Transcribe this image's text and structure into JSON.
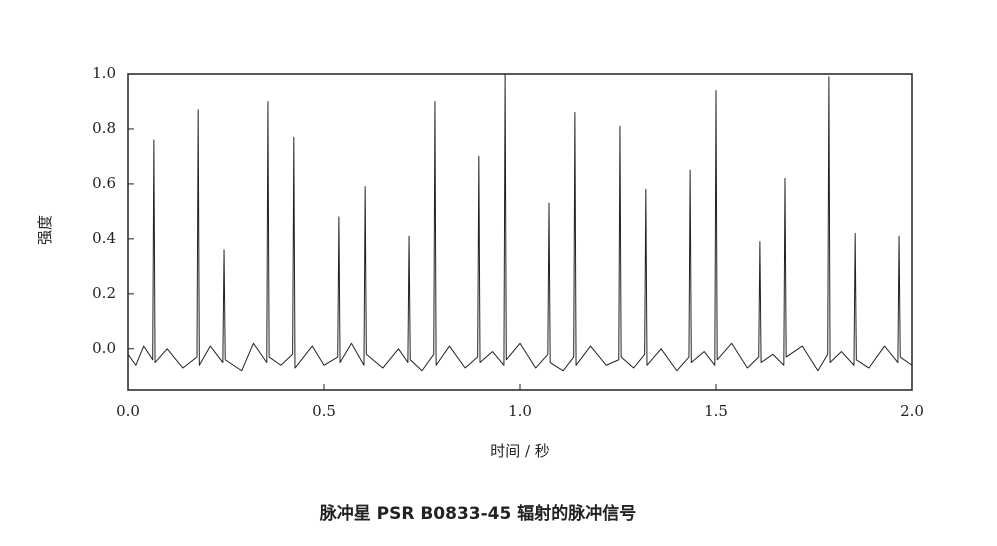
{
  "chart_data": {
    "type": "line",
    "title": "脉冲星 PSR B0833-45 辐射的脉冲信号",
    "xlabel": "时间 / 秒",
    "ylabel": "强度",
    "color": "#222222",
    "xlim": [
      0,
      2
    ],
    "ylim": [
      -0.15,
      1
    ],
    "xticks": [
      {
        "value": 0,
        "label": "0.0"
      },
      0.5,
      {
        "value": 1,
        "label": "1.0"
      },
      1.5,
      {
        "value": 2,
        "label": "2.0"
      }
    ],
    "yticks": [
      {
        "value": 0,
        "label": "0.0"
      },
      0.2,
      0.4,
      0.6,
      0.8,
      {
        "value": 1,
        "label": "1.0"
      }
    ],
    "x": [
      0,
      0.02,
      0.04,
      0.063,
      0.066,
      0.069,
      0.1,
      0.14,
      0.176,
      0.179,
      0.182,
      0.21,
      0.242,
      0.245,
      0.248,
      0.29,
      0.32,
      0.354,
      0.357,
      0.36,
      0.39,
      0.42,
      0.423,
      0.426,
      0.47,
      0.5,
      0.535,
      0.538,
      0.541,
      0.57,
      0.602,
      0.605,
      0.608,
      0.65,
      0.69,
      0.714,
      0.717,
      0.72,
      0.75,
      0.78,
      0.783,
      0.786,
      0.82,
      0.86,
      0.892,
      0.895,
      0.898,
      0.93,
      0.959,
      0.962,
      0.965,
      1.0,
      1.04,
      1.071,
      1.074,
      1.077,
      1.11,
      1.137,
      1.14,
      1.143,
      1.18,
      1.22,
      1.252,
      1.255,
      1.258,
      1.29,
      1.318,
      1.321,
      1.324,
      1.36,
      1.4,
      1.431,
      1.434,
      1.437,
      1.47,
      1.497,
      1.5,
      1.503,
      1.54,
      1.58,
      1.609,
      1.612,
      1.615,
      1.645,
      1.673,
      1.676,
      1.679,
      1.72,
      1.76,
      1.785,
      1.788,
      1.791,
      1.82,
      1.852,
      1.855,
      1.858,
      1.89,
      1.93,
      1.964,
      1.967,
      1.97,
      2.0
    ],
    "values": [
      -0.02,
      -0.06,
      0.01,
      -0.04,
      0.76,
      -0.05,
      0.0,
      -0.07,
      -0.03,
      0.87,
      -0.06,
      0.01,
      -0.05,
      0.36,
      -0.04,
      -0.08,
      0.02,
      -0.05,
      0.9,
      -0.03,
      -0.06,
      -0.02,
      0.77,
      -0.07,
      0.01,
      -0.06,
      -0.03,
      0.48,
      -0.05,
      0.02,
      -0.06,
      0.59,
      -0.02,
      -0.07,
      0.0,
      -0.05,
      0.41,
      -0.04,
      -0.08,
      -0.02,
      0.9,
      -0.06,
      0.01,
      -0.07,
      -0.03,
      0.7,
      -0.05,
      -0.01,
      -0.06,
      1.0,
      -0.04,
      0.02,
      -0.07,
      -0.02,
      0.53,
      -0.05,
      -0.08,
      -0.03,
      0.86,
      -0.06,
      0.01,
      -0.06,
      -0.04,
      0.81,
      -0.03,
      -0.07,
      -0.02,
      0.58,
      -0.06,
      0.0,
      -0.08,
      -0.03,
      0.65,
      -0.05,
      -0.01,
      -0.06,
      0.94,
      -0.04,
      0.02,
      -0.07,
      -0.03,
      0.39,
      -0.05,
      -0.02,
      -0.06,
      0.62,
      -0.03,
      0.01,
      -0.08,
      -0.02,
      0.99,
      -0.05,
      -0.01,
      -0.06,
      0.42,
      -0.04,
      -0.07,
      0.01,
      -0.05,
      0.41,
      -0.03,
      -0.06
    ]
  }
}
